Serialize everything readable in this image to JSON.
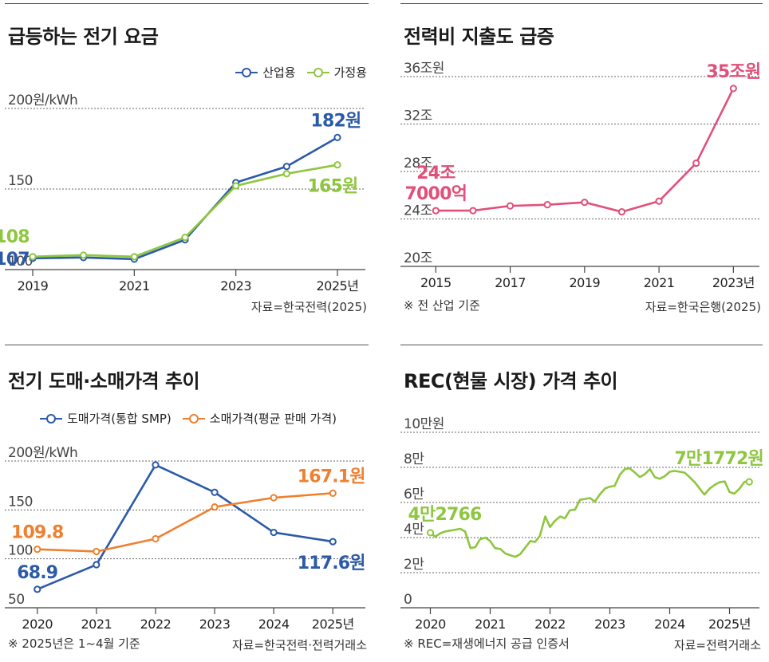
{
  "chart_data": [
    {
      "type": "line",
      "title": "급등하는 전기 요금",
      "ylabel": "200원/kWh",
      "ylim": [
        100,
        200
      ],
      "y_ticks": [
        {
          "value": 100,
          "label": "100"
        },
        {
          "value": 150,
          "label": "150"
        },
        {
          "value": 200,
          "label": "200원/kWh"
        }
      ],
      "x": [
        2019,
        2020,
        2021,
        2022,
        2023,
        2024,
        2025
      ],
      "x_ticks": [
        {
          "value": 2019,
          "label": "2019"
        },
        {
          "value": 2021,
          "label": "2021"
        },
        {
          "value": 2023,
          "label": "2023"
        },
        {
          "value": 2025,
          "label": "2025년"
        }
      ],
      "series": [
        {
          "name": "산업용",
          "color": "#2b5aa8",
          "values": [
            107,
            107.5,
            106.5,
            118.5,
            154,
            164,
            182
          ],
          "labels": [
            {
              "text": "107",
              "index": 0,
              "pos": "left"
            },
            {
              "text": "182원",
              "index": 6,
              "pos": "above"
            }
          ]
        },
        {
          "name": "가정용",
          "color": "#8ec63f",
          "values": [
            108,
            109,
            108,
            120,
            152,
            159.5,
            165
          ],
          "labels": [
            {
              "text": "108",
              "index": 0,
              "pos": "aboveleft"
            },
            {
              "text": "165원",
              "index": 6,
              "pos": "below"
            }
          ]
        }
      ],
      "source": "자료=한국전력(2025)",
      "note": ""
    },
    {
      "type": "line",
      "title": "전력비 지출도 급증",
      "ylim": [
        20,
        36
      ],
      "y_ticks": [
        {
          "value": 20,
          "label": "20조"
        },
        {
          "value": 24,
          "label": "24조"
        },
        {
          "value": 28,
          "label": "28조"
        },
        {
          "value": 32,
          "label": "32조"
        },
        {
          "value": 36,
          "label": "36조원"
        }
      ],
      "x": [
        2015,
        2016,
        2017,
        2018,
        2019,
        2020,
        2021,
        2022,
        2023
      ],
      "x_ticks": [
        {
          "value": 2015,
          "label": "2015"
        },
        {
          "value": 2017,
          "label": "2017"
        },
        {
          "value": 2019,
          "label": "2019"
        },
        {
          "value": 2021,
          "label": "2021"
        },
        {
          "value": 2023,
          "label": "2023년"
        }
      ],
      "series": [
        {
          "name": "전력비 지출",
          "color": "#e0507a",
          "values": [
            24.7,
            24.7,
            25.1,
            25.2,
            25.4,
            24.6,
            25.5,
            28.7,
            35
          ],
          "labels": [
            {
              "text": "24조",
              "index": 0,
              "pos": "above2"
            },
            {
              "text": "7000억",
              "index": 0,
              "pos": "above1"
            },
            {
              "text": "35조원",
              "index": 8,
              "pos": "above"
            }
          ]
        }
      ],
      "source": "자료=한국은행(2025)",
      "note": "※ 전 산업 기준"
    },
    {
      "type": "line",
      "title": "전기 도매·소매가격 추이",
      "ylim": [
        50,
        200
      ],
      "y_ticks": [
        {
          "value": 50,
          "label": "50"
        },
        {
          "value": 100,
          "label": "100"
        },
        {
          "value": 150,
          "label": "150"
        },
        {
          "value": 200,
          "label": "200원/kWh"
        }
      ],
      "x": [
        2020,
        2021,
        2022,
        2023,
        2024,
        2025
      ],
      "x_ticks": [
        {
          "value": 2020,
          "label": "2020"
        },
        {
          "value": 2021,
          "label": "2021"
        },
        {
          "value": 2022,
          "label": "2022"
        },
        {
          "value": 2023,
          "label": "2023"
        },
        {
          "value": 2024,
          "label": "2024"
        },
        {
          "value": 2025,
          "label": "2025년"
        }
      ],
      "series": [
        {
          "name": "도매가격(통합 SMP)",
          "color": "#2b5aa8",
          "values": [
            68.9,
            94,
            196,
            168,
            127,
            117.6
          ],
          "labels": [
            {
              "text": "68.9",
              "index": 0,
              "pos": "above"
            },
            {
              "text": "117.6원",
              "index": 5,
              "pos": "below"
            }
          ]
        },
        {
          "name": "소매가격(평균 판매 가격)",
          "color": "#ee8030",
          "values": [
            109.8,
            107.5,
            120.5,
            153,
            162.5,
            167.1
          ],
          "labels": [
            {
              "text": "109.8",
              "index": 0,
              "pos": "above"
            },
            {
              "text": "167.1원",
              "index": 5,
              "pos": "above"
            }
          ]
        }
      ],
      "source": "자료=한국전력·전력거래소",
      "note": "※ 2025년은 1~4월 기준"
    },
    {
      "type": "line",
      "title": "REC(현물 시장) 가격 추이",
      "ylim": [
        0,
        100000
      ],
      "y_ticks": [
        {
          "value": 0,
          "label": "0"
        },
        {
          "value": 20000,
          "label": "2만"
        },
        {
          "value": 40000,
          "label": "4만"
        },
        {
          "value": 60000,
          "label": "6만"
        },
        {
          "value": 80000,
          "label": "8만"
        },
        {
          "value": 100000,
          "label": "10만원"
        }
      ],
      "x_range": [
        2019.5,
        2025.5
      ],
      "x_ticks": [
        {
          "value": 2020,
          "label": "2020"
        },
        {
          "value": 2021,
          "label": "2021"
        },
        {
          "value": 2022,
          "label": "2022"
        },
        {
          "value": 2023,
          "label": "2023"
        },
        {
          "value": 2024,
          "label": "2024"
        },
        {
          "value": 2025,
          "label": "2025년"
        }
      ],
      "series": [
        {
          "name": "REC 가격",
          "color": "#8ec63f",
          "marker_endpoints": true,
          "x": [
            2020.0,
            2020.08,
            2020.17,
            2020.25,
            2020.42,
            2020.5,
            2020.58,
            2020.67,
            2020.75,
            2020.83,
            2020.92,
            2021.0,
            2021.08,
            2021.17,
            2021.25,
            2021.33,
            2021.42,
            2021.5,
            2021.58,
            2021.67,
            2021.75,
            2021.83,
            2021.92,
            2022.0,
            2022.08,
            2022.17,
            2022.25,
            2022.33,
            2022.42,
            2022.5,
            2022.58,
            2022.67,
            2022.75,
            2022.83,
            2022.92,
            2023.0,
            2023.08,
            2023.17,
            2023.25,
            2023.33,
            2023.42,
            2023.5,
            2023.58,
            2023.67,
            2023.75,
            2023.83,
            2023.92,
            2024.0,
            2024.08,
            2024.17,
            2024.25,
            2024.33,
            2024.42,
            2024.5,
            2024.58,
            2024.67,
            2024.75,
            2024.83,
            2024.92,
            2025.0,
            2025.08,
            2025.17,
            2025.25,
            2025.33
          ],
          "values": [
            42766,
            40500,
            42500,
            43500,
            44500,
            45000,
            43500,
            34000,
            34500,
            39000,
            40000,
            38000,
            34000,
            33500,
            31000,
            30000,
            29000,
            30500,
            34000,
            38000,
            37500,
            41000,
            52000,
            46000,
            49500,
            52000,
            51000,
            55500,
            56000,
            61500,
            62000,
            62500,
            60500,
            64500,
            68000,
            69000,
            69500,
            76000,
            79000,
            79500,
            77000,
            74500,
            76000,
            79000,
            74500,
            73500,
            75000,
            77500,
            78000,
            77500,
            77000,
            74500,
            71500,
            68000,
            64500,
            68000,
            70000,
            71500,
            72000,
            66000,
            65000,
            68000,
            71772,
            71772
          ],
          "labels": [
            {
              "text": "4만2766",
              "index": 0,
              "pos": "above"
            },
            {
              "text": "7만1772원",
              "index": 63,
              "pos": "above"
            }
          ]
        }
      ],
      "source": "자료=전력거래소",
      "note": "※ REC=재생에너지 공급 인증서"
    }
  ]
}
